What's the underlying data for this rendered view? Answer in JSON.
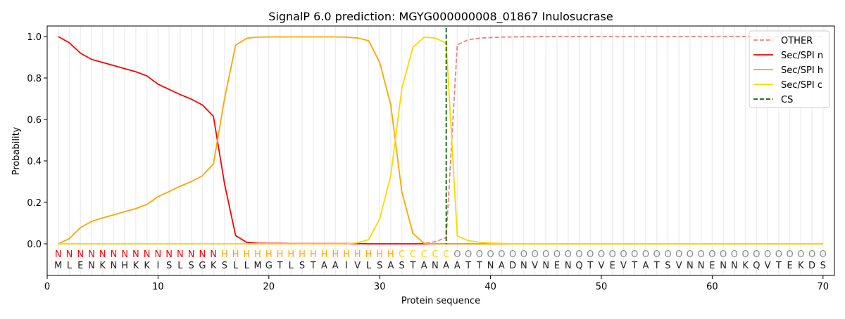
{
  "chart_data": {
    "type": "line",
    "title": "SignalP 6.0 prediction: MGYG000000008_01867 Inulosucrase",
    "xlabel": "Protein sequence",
    "ylabel": "Probability",
    "xlim": [
      0,
      71
    ],
    "ylim": [
      -0.15,
      1.05
    ],
    "xticks": [
      0,
      10,
      20,
      30,
      40,
      50,
      60,
      70
    ],
    "yticks": [
      0.0,
      0.2,
      0.4,
      0.6,
      0.8,
      1.0
    ],
    "ytick_labels": [
      "0.0",
      "0.2",
      "0.4",
      "0.6",
      "0.8",
      "1.0"
    ],
    "legend_position": "top-right",
    "sequence": "MLENKNHKKISLSGKSLLMGTLSTAAIVLSASTANAATTNADNVNENQTVEVTATSVNNENNKQVTEKDS",
    "labels": "NNNNNNNNNNNNNNNHHHHHHHHHHHHHHHHCCCCCOOOOOOOOOOOOOOOOOOOOOOOOOOOOOOOOOO",
    "label_colors": {
      "N": "#ff0000",
      "H": "#ffa500",
      "C": "#ffd700",
      "O": "#888888"
    },
    "cs_position": 36,
    "series": [
      {
        "name": "OTHER",
        "color": "#f08080",
        "dash": true,
        "values": [
          0,
          0,
          0,
          0,
          0,
          0,
          0,
          0,
          0,
          0,
          0,
          0,
          0,
          0,
          0,
          0,
          0,
          0,
          0,
          0,
          0,
          0,
          0,
          0,
          0,
          0,
          0,
          0,
          0,
          0,
          0,
          0,
          0,
          0.002,
          0.01,
          0.03,
          0.96,
          0.985,
          0.992,
          0.995,
          0.997,
          0.998,
          0.999,
          0.999,
          1,
          1,
          1,
          1,
          1,
          1,
          1,
          1,
          1,
          1,
          1,
          1,
          1,
          1,
          1,
          1,
          1,
          1,
          1,
          1,
          1,
          1,
          1,
          1,
          1,
          1
        ]
      },
      {
        "name": "Sec/SPI n",
        "color": "#ff0000",
        "values": [
          1.0,
          0.97,
          0.92,
          0.89,
          0.875,
          0.86,
          0.845,
          0.83,
          0.81,
          0.77,
          0.745,
          0.72,
          0.698,
          0.67,
          0.615,
          0.29,
          0.04,
          0.007,
          0.003,
          0.002,
          0.002,
          0.001,
          0.001,
          0.001,
          0.001,
          0.001,
          0.001,
          0.001,
          0,
          0,
          0,
          0,
          0,
          0,
          0,
          0,
          0,
          0,
          0,
          0,
          0,
          0,
          0,
          0,
          0,
          0,
          0,
          0,
          0,
          0,
          0,
          0,
          0,
          0,
          0,
          0,
          0,
          0,
          0,
          0,
          0,
          0,
          0,
          0,
          0,
          0,
          0,
          0,
          0,
          0
        ]
      },
      {
        "name": "Sec/SPI h",
        "color": "#ffa500",
        "values": [
          0,
          0.025,
          0.078,
          0.108,
          0.125,
          0.14,
          0.155,
          0.17,
          0.19,
          0.228,
          0.252,
          0.278,
          0.3,
          0.328,
          0.385,
          0.7,
          0.958,
          0.992,
          0.997,
          0.998,
          0.998,
          0.998,
          0.998,
          0.998,
          0.998,
          0.998,
          0.997,
          0.993,
          0.98,
          0.875,
          0.67,
          0.25,
          0.05,
          0.003,
          0,
          0,
          0,
          0,
          0,
          0,
          0,
          0,
          0,
          0,
          0,
          0,
          0,
          0,
          0,
          0,
          0,
          0,
          0,
          0,
          0,
          0,
          0,
          0,
          0,
          0,
          0,
          0,
          0,
          0,
          0,
          0,
          0,
          0,
          0,
          0
        ]
      },
      {
        "name": "Sec/SPI c",
        "color": "#ffd700",
        "values": [
          0,
          0,
          0,
          0,
          0,
          0,
          0,
          0,
          0,
          0,
          0,
          0,
          0,
          0,
          0,
          0,
          0,
          0,
          0,
          0,
          0,
          0,
          0,
          0,
          0,
          0,
          0,
          0.005,
          0.02,
          0.12,
          0.33,
          0.75,
          0.948,
          0.997,
          0.993,
          0.968,
          0.038,
          0.015,
          0.008,
          0.004,
          0.002,
          0,
          0,
          0,
          0,
          0,
          0,
          0,
          0,
          0,
          0,
          0,
          0,
          0,
          0,
          0,
          0,
          0,
          0,
          0,
          0,
          0,
          0,
          0,
          0,
          0,
          0,
          0,
          0,
          0
        ]
      },
      {
        "name": "CS",
        "color": "#006400",
        "dash": true
      }
    ]
  }
}
